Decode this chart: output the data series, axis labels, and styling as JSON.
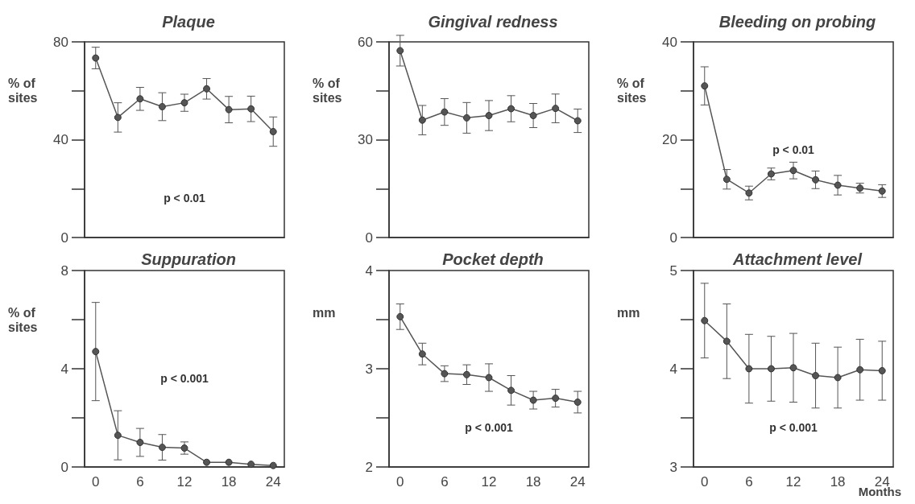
{
  "chart_data": [
    {
      "type": "line",
      "title": "Plaque",
      "ylabel": "% of sites",
      "annotations": [
        "p < 0.01"
      ],
      "color": "#555555",
      "marker": "circle",
      "grid": false,
      "tick_labels": "y",
      "x": [
        0,
        3,
        6,
        9,
        12,
        15,
        18,
        21,
        24
      ],
      "values": [
        73.4,
        49.1,
        56.7,
        53.5,
        55.1,
        60.8,
        52.3,
        52.6,
        43.3
      ],
      "errors": [
        4.4,
        6,
        4.7,
        5.7,
        3.5,
        4.2,
        5.4,
        5.2,
        6
      ],
      "xlim": [
        -1.5,
        25.5
      ],
      "xticks": [
        0,
        6,
        12,
        18,
        24
      ],
      "ylim": [
        0,
        80
      ],
      "yticks": [
        0,
        {
          "value": 20,
          "label": null
        },
        40,
        {
          "value": 60,
          "label": null
        },
        80
      ]
    },
    {
      "type": "line",
      "title": "Gingival redness",
      "ylabel": "% of sites",
      "color": "#555555",
      "marker": "circle",
      "grid": false,
      "tick_labels": "y",
      "x": [
        0,
        3,
        6,
        9,
        12,
        15,
        18,
        21,
        24
      ],
      "values": [
        57.3,
        36,
        38.5,
        36.7,
        37.4,
        39.5,
        37.4,
        39.6,
        35.8
      ],
      "errors": [
        4.7,
        4.5,
        4.1,
        4.7,
        4.6,
        4,
        3.7,
        4.4,
        3.6
      ],
      "xlim": [
        -1.5,
        25.5
      ],
      "xticks": [
        0,
        6,
        12,
        18,
        24
      ],
      "ylim": [
        0,
        60
      ],
      "yticks": [
        0,
        {
          "value": 15,
          "label": null
        },
        30,
        {
          "value": 45,
          "label": null
        },
        60
      ]
    },
    {
      "type": "line",
      "title": "Bleeding on probing",
      "ylabel": "% of sites",
      "annotations": [
        "p < 0.01"
      ],
      "color": "#555555",
      "marker": "circle",
      "grid": false,
      "tick_labels": "y",
      "x": [
        0,
        3,
        6,
        9,
        12,
        15,
        18,
        21,
        24
      ],
      "values": [
        31,
        11.9,
        9.1,
        13,
        13.7,
        11.8,
        10.7,
        10.1,
        9.5
      ],
      "errors": [
        3.9,
        2,
        1.4,
        1.2,
        1.7,
        1.8,
        2,
        1,
        1.3
      ],
      "xlim": [
        -1.5,
        25.5
      ],
      "xticks": [
        0,
        6,
        12,
        18,
        24
      ],
      "ylim": [
        0,
        40
      ],
      "yticks": [
        0,
        {
          "value": 10,
          "label": null
        },
        20,
        {
          "value": 30,
          "label": null
        },
        40
      ]
    },
    {
      "type": "line",
      "title": "Suppuration",
      "ylabel": "% of sites",
      "annotations": [
        "p < 0.001"
      ],
      "color": "#555555",
      "marker": "circle",
      "grid": false,
      "x": [
        0,
        3,
        6,
        9,
        12,
        15,
        18,
        21,
        24
      ],
      "values": [
        4.7,
        1.29,
        1.0,
        0.8,
        0.77,
        0.19,
        0.19,
        0.11,
        0.06
      ],
      "errors": [
        2,
        1,
        0.57,
        0.52,
        0.25,
        null,
        null,
        null,
        null
      ],
      "xlim": [
        -1.5,
        25.5
      ],
      "xticks": [
        0,
        6,
        12,
        18,
        24
      ],
      "ylim": [
        0,
        8
      ],
      "yticks": [
        0,
        {
          "value": 2,
          "label": null
        },
        4,
        {
          "value": 6,
          "label": null
        },
        8
      ]
    },
    {
      "type": "line",
      "title": "Pocket depth",
      "ylabel": "mm",
      "annotations": [
        "p < 0.001"
      ],
      "color": "#555555",
      "marker": "circle",
      "grid": false,
      "x": [
        0,
        3,
        6,
        9,
        12,
        15,
        18,
        21,
        24
      ],
      "values": [
        3.53,
        3.15,
        2.95,
        2.94,
        2.91,
        2.78,
        2.68,
        2.7,
        2.66
      ],
      "errors": [
        0.13,
        0.11,
        0.08,
        0.1,
        0.14,
        0.15,
        0.09,
        0.09,
        0.11
      ],
      "xlim": [
        -1.5,
        25.5
      ],
      "xticks": [
        0,
        6,
        12,
        18,
        24
      ],
      "ylim": [
        2,
        4
      ],
      "yticks": [
        2,
        {
          "value": 2.5,
          "label": null
        },
        3,
        {
          "value": 3.5,
          "label": null
        },
        4
      ]
    },
    {
      "type": "line",
      "title": "Attachment level",
      "ylabel": "mm",
      "xlabel": "Months",
      "annotations": [
        "p < 0.001"
      ],
      "color": "#555555",
      "marker": "circle",
      "grid": false,
      "x": [
        0,
        3,
        6,
        9,
        12,
        15,
        18,
        21,
        24
      ],
      "values": [
        4.49,
        4.28,
        4.0,
        4.0,
        4.01,
        3.93,
        3.91,
        3.99,
        3.98
      ],
      "errors": [
        0.38,
        0.38,
        0.35,
        0.33,
        0.35,
        0.33,
        0.31,
        0.31,
        0.3
      ],
      "xlim": [
        -1.5,
        25.5
      ],
      "xticks": [
        0,
        6,
        12,
        18,
        24
      ],
      "ylim": [
        3,
        5
      ],
      "yticks": [
        3,
        {
          "value": 3.5,
          "label": null
        },
        4,
        {
          "value": 4.5,
          "label": null
        },
        5
      ]
    }
  ]
}
